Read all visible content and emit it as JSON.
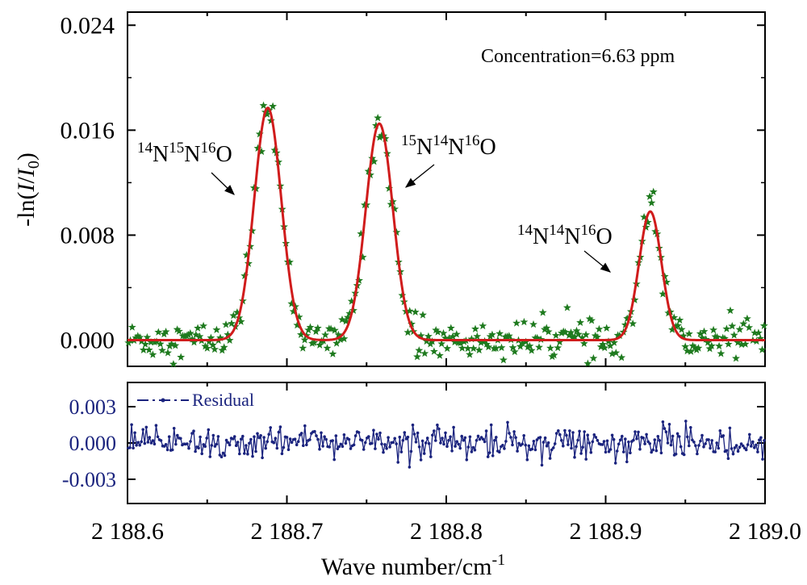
{
  "chart_data": [
    {
      "type": "scatter",
      "panel": "top",
      "ylabel": "-ln(I/I0)",
      "xlim": [
        2188.6,
        2189.0
      ],
      "ylim": [
        -0.002,
        0.025
      ],
      "yticks": [
        0.0,
        0.008,
        0.016,
        0.024
      ],
      "ytick_labels": [
        "0.000",
        "0.008",
        "0.016",
        "0.024"
      ],
      "annotation_text": "Concentration=6.63 ppm",
      "peak_labels": [
        {
          "iso": "14N15N16O",
          "parts": [
            {
              "sup": "14",
              "base": "N"
            },
            {
              "sup": "15",
              "base": "N"
            },
            {
              "sup": "16",
              "base": "O"
            }
          ]
        },
        {
          "iso": "15N14N16O",
          "parts": [
            {
              "sup": "15",
              "base": "N"
            },
            {
              "sup": "14",
              "base": "N"
            },
            {
              "sup": "16",
              "base": "O"
            }
          ]
        },
        {
          "iso": "14N14N16O",
          "parts": [
            {
              "sup": "14",
              "base": "N"
            },
            {
              "sup": "14",
              "base": "N"
            },
            {
              "sup": "16",
              "base": "O"
            }
          ]
        }
      ],
      "peaks": [
        {
          "center": 2188.688,
          "height": 0.0177,
          "sigma": 0.0085
        },
        {
          "center": 2188.758,
          "height": 0.0165,
          "sigma": 0.0085
        },
        {
          "center": 2188.928,
          "height": 0.0098,
          "sigma": 0.007
        }
      ],
      "fit_color": "#d01c1c",
      "measured_color": "#1e7a1e",
      "grid": false
    },
    {
      "type": "line",
      "panel": "bottom",
      "series": [
        {
          "name": "Residual",
          "color": "#1a237e"
        }
      ],
      "xlabel_base": "Wave number/cm",
      "xlabel_sup": "-1",
      "xlim": [
        2188.6,
        2189.0
      ],
      "xticks": [
        2188.6,
        2188.7,
        2188.8,
        2188.9,
        2189.0
      ],
      "xtick_labels": [
        "2 188.6",
        "2 188.7",
        "2 188.8",
        "2 188.9",
        "2 189.0"
      ],
      "ylim": [
        -0.005,
        0.005
      ],
      "yticks": [
        -0.003,
        0.0,
        0.003
      ],
      "ytick_labels": [
        "-0.003",
        "0.000",
        "0.003"
      ],
      "residual_amplitude": 0.0011,
      "grid": false
    }
  ]
}
